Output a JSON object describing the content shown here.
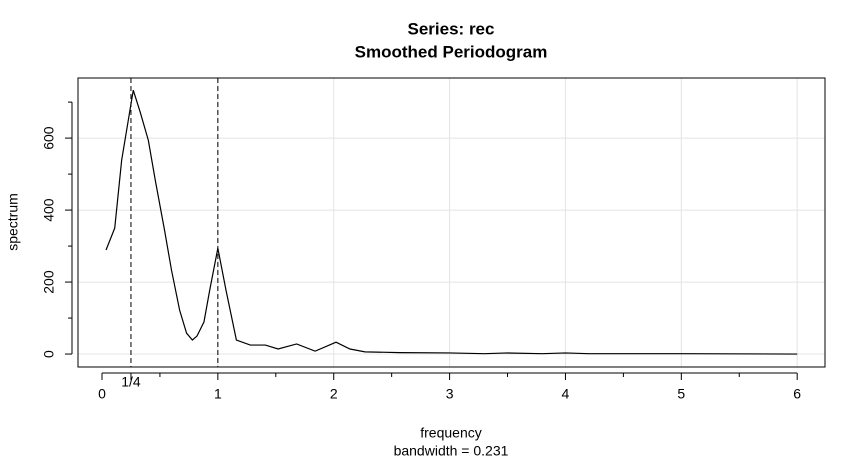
{
  "chart_data": {
    "type": "line",
    "title": "Series: rec",
    "subtitle": "Smoothed Periodogram",
    "xlabel": "frequency",
    "xlabel_sub": "bandwidth = 0.231",
    "ylabel": "spectrum",
    "x": [
      0.035,
      0.11,
      0.17,
      0.27,
      0.33,
      0.4,
      0.46,
      0.54,
      0.6,
      0.67,
      0.73,
      0.78,
      0.82,
      0.88,
      0.93,
      1.0,
      1.07,
      1.16,
      1.28,
      1.41,
      1.52,
      1.68,
      1.84,
      2.02,
      2.14,
      2.27,
      2.57,
      3.0,
      3.3,
      3.5,
      3.8,
      4.0,
      4.2,
      5.0,
      6.0
    ],
    "values": [
      289,
      350,
      539,
      733,
      672,
      594,
      483,
      344,
      233,
      122,
      58,
      39,
      50,
      89,
      178,
      294,
      178,
      39,
      25,
      25,
      14,
      28,
      8,
      33,
      14,
      6,
      4,
      3,
      1,
      3,
      1,
      3,
      1,
      1,
      0
    ],
    "color": "#000000",
    "xlim": [
      -0.207,
      6.24
    ],
    "ylim": [
      -36,
      767
    ],
    "xticks": [
      0,
      {
        "value": 0.25,
        "label": "1/4"
      },
      1,
      2,
      3,
      4,
      5,
      6
    ],
    "xticks_minor": [
      0.5,
      1.5,
      2.5,
      3.5,
      4.5,
      5.5
    ],
    "yticks": [
      0,
      200,
      400,
      600
    ],
    "yticks_minor": [
      100,
      300,
      500,
      700
    ],
    "xgrid": [
      1,
      2,
      3,
      4,
      5,
      6
    ],
    "vlines": [
      0.25,
      1
    ],
    "grid": true
  }
}
